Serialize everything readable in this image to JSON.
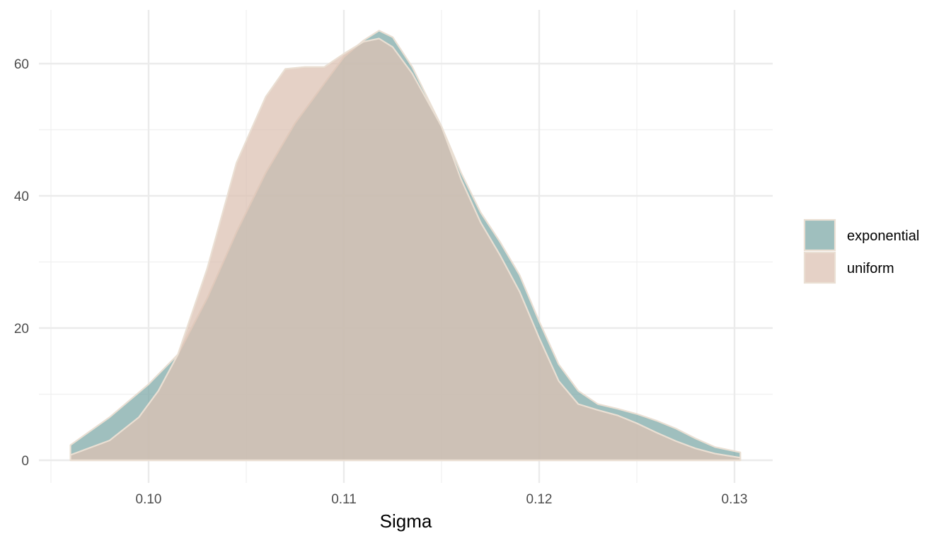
{
  "chart_data": {
    "type": "area",
    "xlabel": "Sigma",
    "ylabel": "",
    "xlim": [
      0.095,
      0.132
    ],
    "ylim": [
      0,
      66
    ],
    "xticks": [
      0.1,
      0.11,
      0.12,
      0.13
    ],
    "xtick_labels": [
      "0.10",
      "0.11",
      "0.12",
      "0.13"
    ],
    "yticks": [
      0,
      20,
      40,
      60
    ],
    "ytick_labels": [
      "0",
      "20",
      "40",
      "60"
    ],
    "grid": true,
    "legend_position": "right",
    "series": [
      {
        "name": "exponential",
        "color": "#7FAAA8",
        "x": [
          0.096,
          0.098,
          0.1,
          0.1015,
          0.103,
          0.1045,
          0.106,
          0.1075,
          0.109,
          0.11,
          0.111,
          0.1118,
          0.1125,
          0.1135,
          0.115,
          0.116,
          0.117,
          0.118,
          0.119,
          0.12,
          0.121,
          0.122,
          0.123,
          0.124,
          0.125,
          0.126,
          0.127,
          0.128,
          0.129,
          0.1303
        ],
        "y": [
          2.3,
          6.5,
          11.5,
          16.0,
          24.5,
          34.5,
          43.5,
          51.0,
          57.0,
          61.0,
          63.5,
          65.0,
          64.0,
          59.5,
          50.5,
          43.5,
          37.5,
          33.0,
          28.0,
          21.0,
          14.5,
          10.5,
          8.5,
          7.8,
          7.0,
          6.0,
          4.8,
          3.3,
          2.0,
          1.2
        ]
      },
      {
        "name": "uniform",
        "color": "#DCC1B3",
        "x": [
          0.096,
          0.098,
          0.0995,
          0.1005,
          0.1015,
          0.103,
          0.1045,
          0.106,
          0.107,
          0.108,
          0.109,
          0.11,
          0.111,
          0.1118,
          0.1125,
          0.1135,
          0.115,
          0.116,
          0.117,
          0.118,
          0.119,
          0.12,
          0.121,
          0.122,
          0.123,
          0.124,
          0.125,
          0.126,
          0.127,
          0.128,
          0.129,
          0.1303
        ],
        "y": [
          0.8,
          3.0,
          6.5,
          10.5,
          16.0,
          29.0,
          45.0,
          55.0,
          59.2,
          59.5,
          59.5,
          61.5,
          63.3,
          63.8,
          62.5,
          58.5,
          50.5,
          42.5,
          36.0,
          31.0,
          25.5,
          18.5,
          12.0,
          8.5,
          7.6,
          6.8,
          5.6,
          4.2,
          2.9,
          1.8,
          1.0,
          0.4
        ]
      }
    ]
  }
}
